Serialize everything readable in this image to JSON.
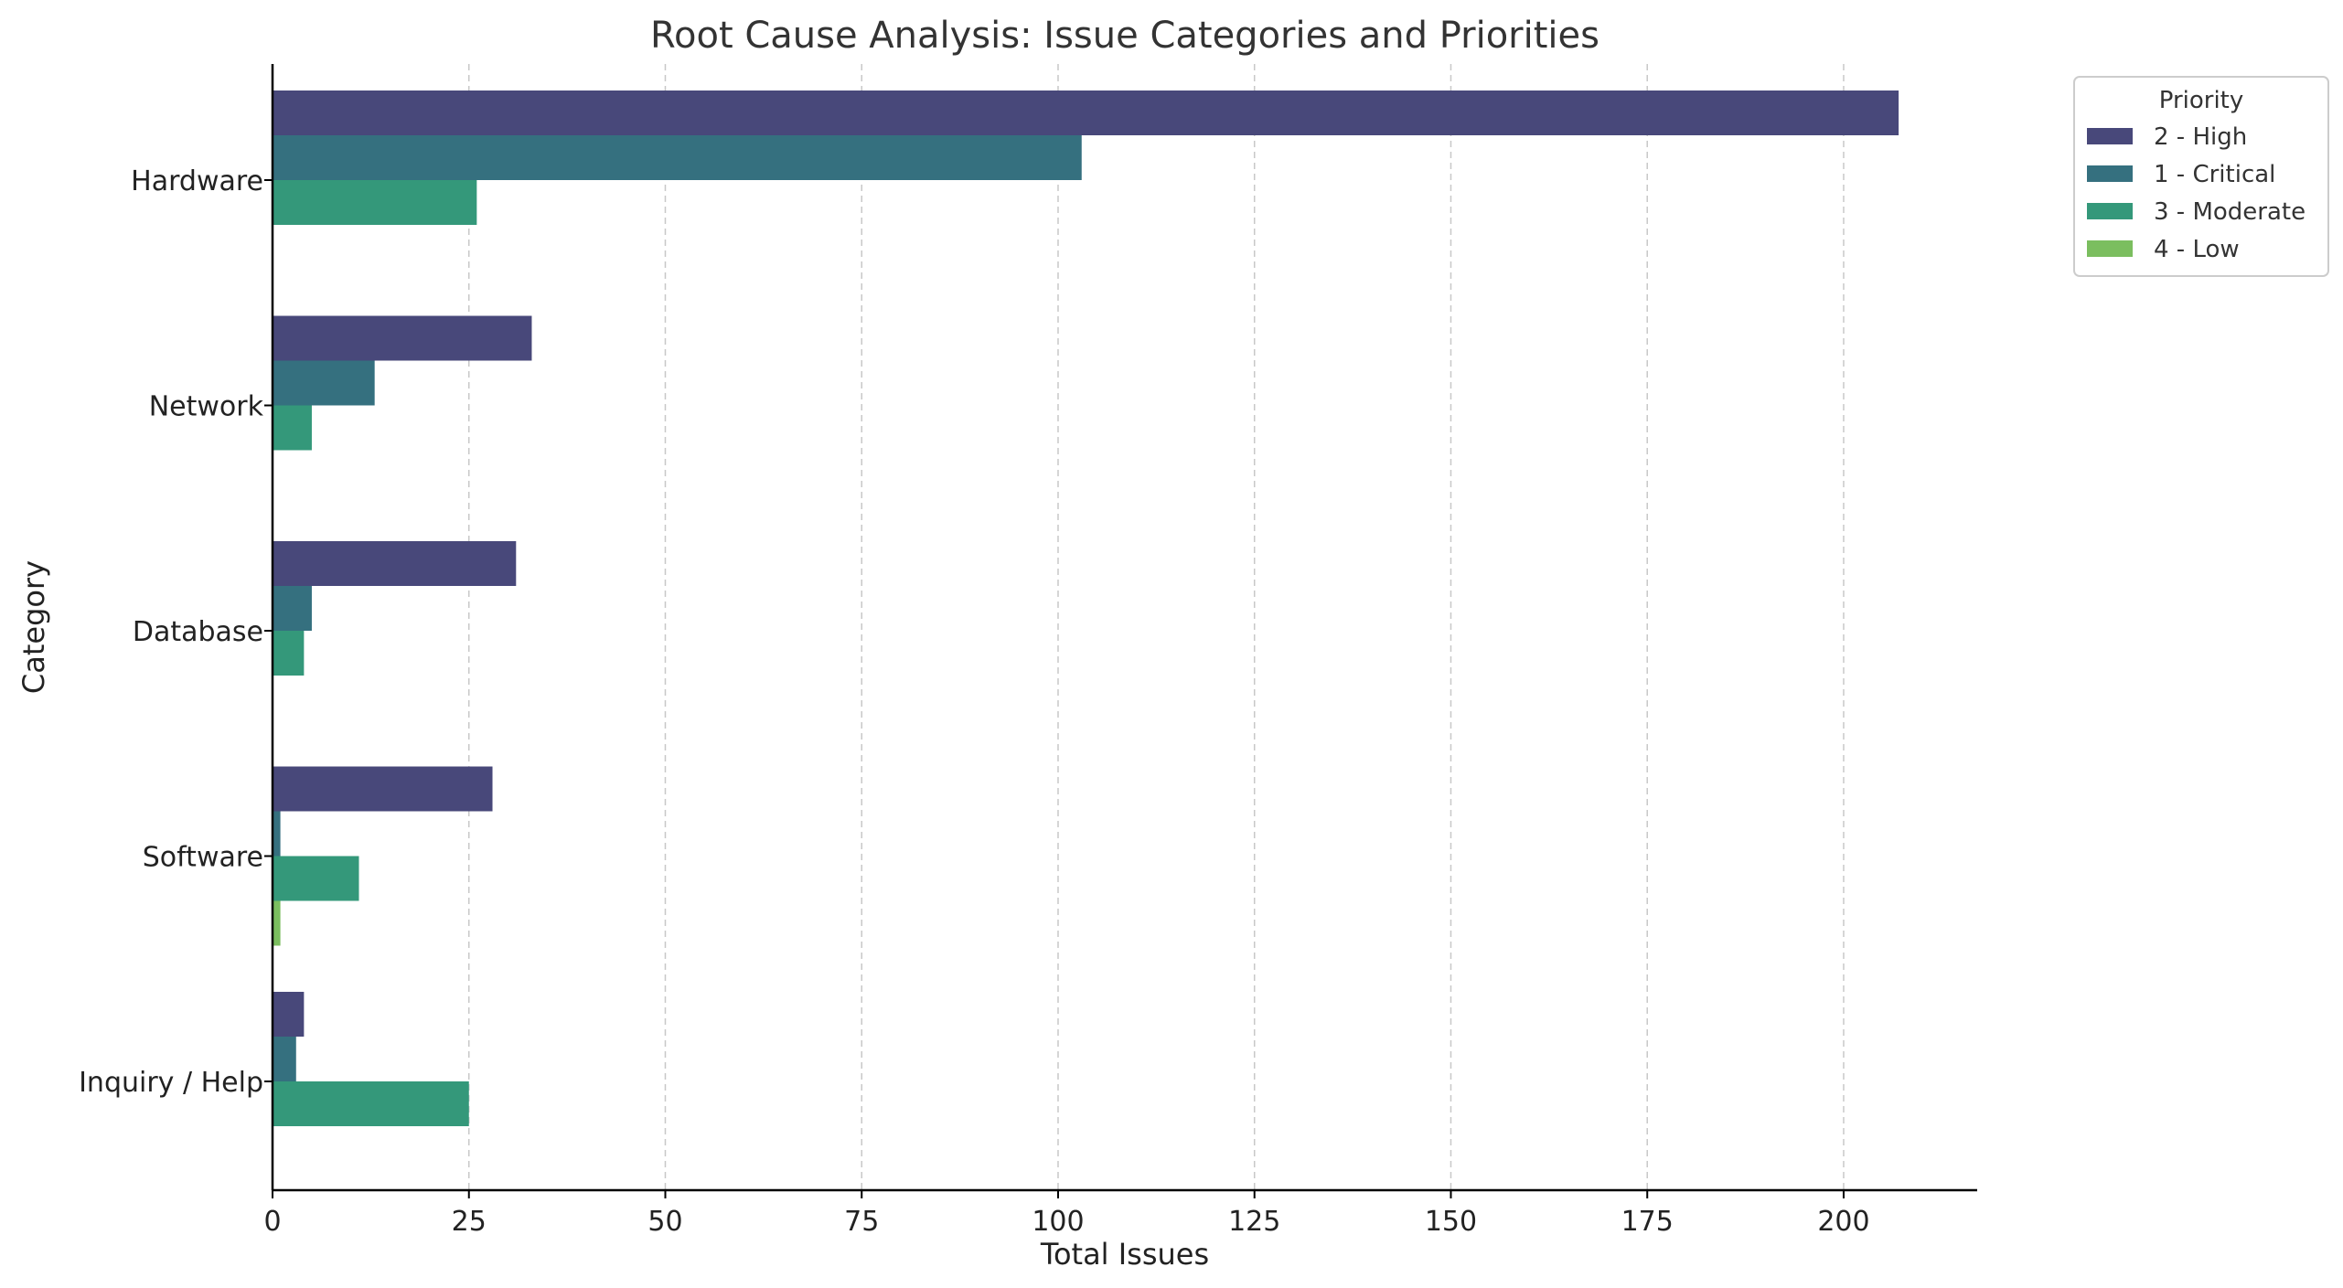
{
  "chart_data": {
    "type": "bar",
    "orientation": "horizontal",
    "title": "Root Cause Analysis: Issue Categories and Priorities",
    "xlabel": "Total Issues",
    "ylabel": "Category",
    "categories": [
      "Hardware",
      "Network",
      "Database",
      "Software",
      "Inquiry / Help"
    ],
    "xlim": [
      0,
      217
    ],
    "xticks": [
      0,
      25,
      50,
      75,
      100,
      125,
      150,
      175,
      200
    ],
    "grid": "vertical dashed",
    "legend": {
      "title": "Priority",
      "placement": "top-right outside"
    },
    "series": [
      {
        "name": "2 - High",
        "color": "#48487a",
        "values": [
          207,
          33,
          31,
          28,
          4
        ]
      },
      {
        "name": "1 - Critical",
        "color": "#35707f",
        "values": [
          103,
          13,
          5,
          1,
          3
        ]
      },
      {
        "name": "3 - Moderate",
        "color": "#34987a",
        "values": [
          26,
          5,
          4,
          11,
          25
        ]
      },
      {
        "name": "4 - Low",
        "color": "#7bbe5f",
        "values": [
          0,
          0,
          0,
          1,
          0
        ]
      }
    ]
  }
}
